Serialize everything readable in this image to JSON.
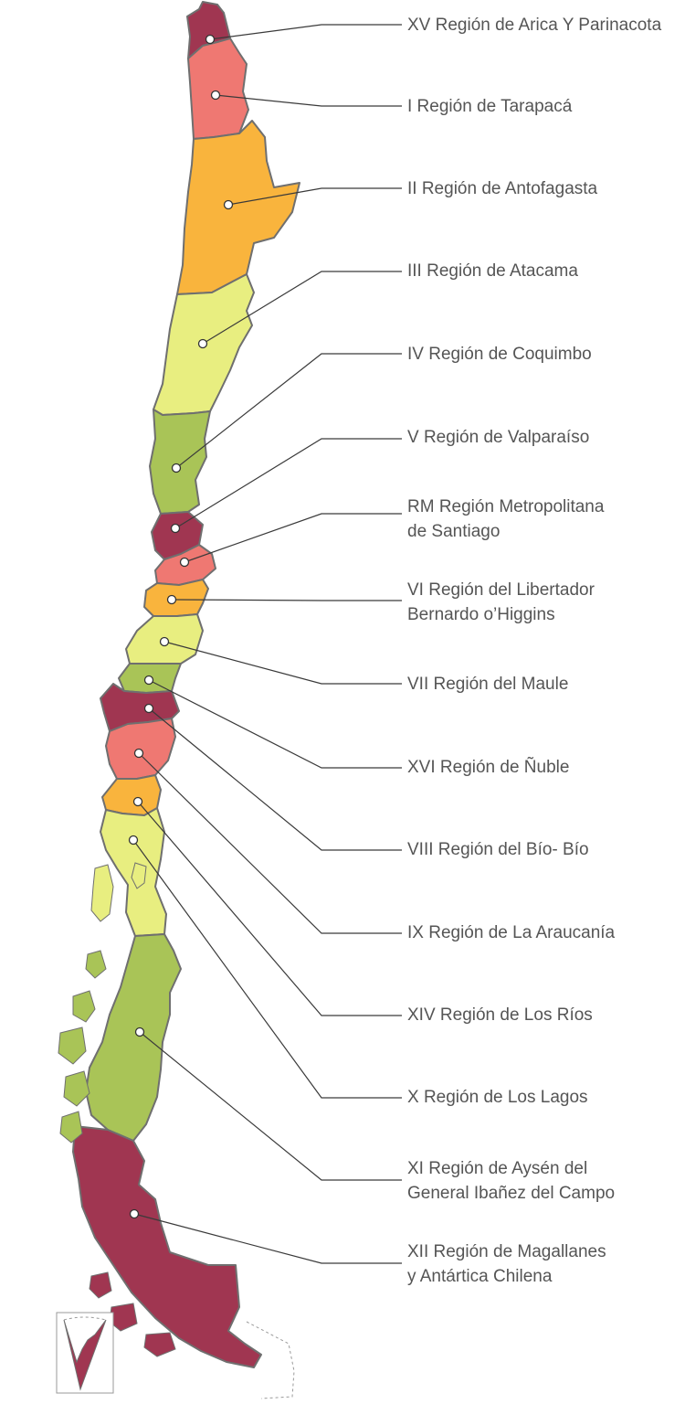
{
  "palette": {
    "wine": "#a03651",
    "salmon": "#ef7872",
    "orange": "#f9b43d",
    "pale_yellow": "#e8ee80",
    "green": "#a9c457",
    "label_text": "#555555",
    "outline": "#6f6f6f"
  },
  "regions": [
    {
      "id": "xv",
      "lines": [
        "XV Región de Arica Y Parinacota"
      ],
      "color": "wine"
    },
    {
      "id": "i",
      "lines": [
        "I Región de Tarapacá"
      ],
      "color": "salmon"
    },
    {
      "id": "ii",
      "lines": [
        "II Región de Antofagasta"
      ],
      "color": "orange"
    },
    {
      "id": "iii",
      "lines": [
        "III Región de Atacama"
      ],
      "color": "pale_yellow"
    },
    {
      "id": "iv",
      "lines": [
        "IV Región de Coquimbo"
      ],
      "color": "green"
    },
    {
      "id": "v",
      "lines": [
        "V Región de Valparaíso"
      ],
      "color": "wine"
    },
    {
      "id": "rm",
      "lines": [
        "RM Región Metropolitana",
        "de Santiago"
      ],
      "color": "salmon"
    },
    {
      "id": "vi",
      "lines": [
        "VI Región del Libertador",
        "Bernardo o’Higgins"
      ],
      "color": "orange"
    },
    {
      "id": "vii",
      "lines": [
        "VII Región del Maule"
      ],
      "color": "pale_yellow"
    },
    {
      "id": "xvi",
      "lines": [
        "XVI Región de Ñuble"
      ],
      "color": "green"
    },
    {
      "id": "viii",
      "lines": [
        "VIII Región del Bío- Bío"
      ],
      "color": "wine"
    },
    {
      "id": "ix",
      "lines": [
        "IX Región de La Araucanía"
      ],
      "color": "salmon"
    },
    {
      "id": "xiv",
      "lines": [
        "XIV Región de Los Ríos"
      ],
      "color": "orange"
    },
    {
      "id": "x",
      "lines": [
        "X Región de Los Lagos"
      ],
      "color": "pale_yellow"
    },
    {
      "id": "xi",
      "lines": [
        "XI Región de Aysén del",
        "General Ibañez del Campo"
      ],
      "color": "green"
    },
    {
      "id": "xii",
      "lines": [
        "XII Región de Magallanes",
        "y Antártica Chilena"
      ],
      "color": "wine"
    }
  ]
}
